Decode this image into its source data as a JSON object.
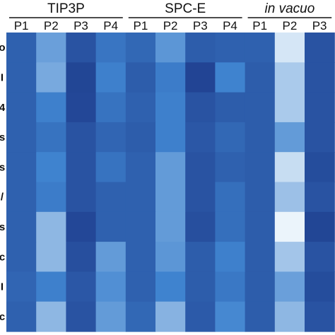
{
  "chart_data": {
    "type": "heatmap",
    "groups": [
      {
        "title": "TIP3P",
        "italic": false,
        "columns": [
          "P1",
          "P2",
          "P3",
          "P4"
        ]
      },
      {
        "title": "SPC-E",
        "italic": false,
        "columns": [
          "P1",
          "P2",
          "P3",
          "P4"
        ]
      },
      {
        "title": "in vacuo",
        "italic": true,
        "columns": [
          "P1",
          "P2",
          "P3"
        ]
      }
    ],
    "row_labels": [
      "o",
      "I",
      "4",
      "s",
      "s",
      "/",
      "s",
      "c",
      "I",
      "c"
    ],
    "values": [
      [
        0.25,
        0.62,
        0.15,
        0.4,
        0.3,
        0.58,
        0.22,
        0.25,
        0.25,
        0.92,
        0.15
      ],
      [
        0.25,
        0.66,
        0.05,
        0.48,
        0.22,
        0.45,
        0.04,
        0.5,
        0.22,
        0.8,
        0.15
      ],
      [
        0.25,
        0.48,
        0.06,
        0.38,
        0.25,
        0.48,
        0.15,
        0.22,
        0.22,
        0.8,
        0.15
      ],
      [
        0.25,
        0.38,
        0.15,
        0.28,
        0.22,
        0.48,
        0.18,
        0.3,
        0.22,
        0.6,
        0.15
      ],
      [
        0.25,
        0.5,
        0.15,
        0.38,
        0.25,
        0.6,
        0.15,
        0.25,
        0.22,
        0.88,
        0.1
      ],
      [
        0.25,
        0.45,
        0.15,
        0.25,
        0.25,
        0.6,
        0.15,
        0.35,
        0.22,
        0.76,
        0.15
      ],
      [
        0.25,
        0.72,
        0.06,
        0.25,
        0.25,
        0.6,
        0.12,
        0.35,
        0.22,
        0.98,
        0.05
      ],
      [
        0.25,
        0.72,
        0.12,
        0.6,
        0.25,
        0.58,
        0.22,
        0.48,
        0.22,
        0.78,
        0.15
      ],
      [
        0.28,
        0.48,
        0.18,
        0.55,
        0.25,
        0.5,
        0.22,
        0.42,
        0.22,
        0.62,
        0.1
      ],
      [
        0.25,
        0.72,
        0.15,
        0.6,
        0.3,
        0.7,
        0.2,
        0.52,
        0.22,
        0.72,
        0.15
      ]
    ],
    "colormap": {
      "low": "#1f3f8f",
      "mid": "#3f83cf",
      "high": "#f2f9fd"
    }
  }
}
